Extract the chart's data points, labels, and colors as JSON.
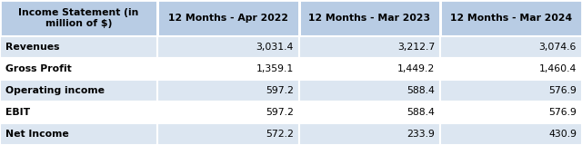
{
  "header_label": "Income Statement (in\nmillion of $)",
  "columns": [
    "12 Months - Apr 2022",
    "12 Months - Mar 2023",
    "12 Months - Mar 2024"
  ],
  "rows": [
    {
      "label": "Revenues",
      "values": [
        "3,031.4",
        "3,212.7",
        "3,074.6"
      ]
    },
    {
      "label": "Gross Profit",
      "values": [
        "1,359.1",
        "1,449.2",
        "1,460.4"
      ]
    },
    {
      "label": "Operating income",
      "values": [
        "597.2",
        "588.4",
        "576.9"
      ]
    },
    {
      "label": "EBIT",
      "values": [
        "597.2",
        "588.4",
        "576.9"
      ]
    },
    {
      "label": "Net Income",
      "values": [
        "572.2",
        "233.9",
        "430.9"
      ]
    }
  ],
  "header_bg": "#b8cce4",
  "row_bg_odd": "#dce6f1",
  "row_bg_even": "#ffffff",
  "border_color": "#ffffff",
  "header_font_size": 7.8,
  "cell_font_size": 7.8,
  "fig_width": 6.4,
  "fig_height": 1.6,
  "dpi": 100
}
